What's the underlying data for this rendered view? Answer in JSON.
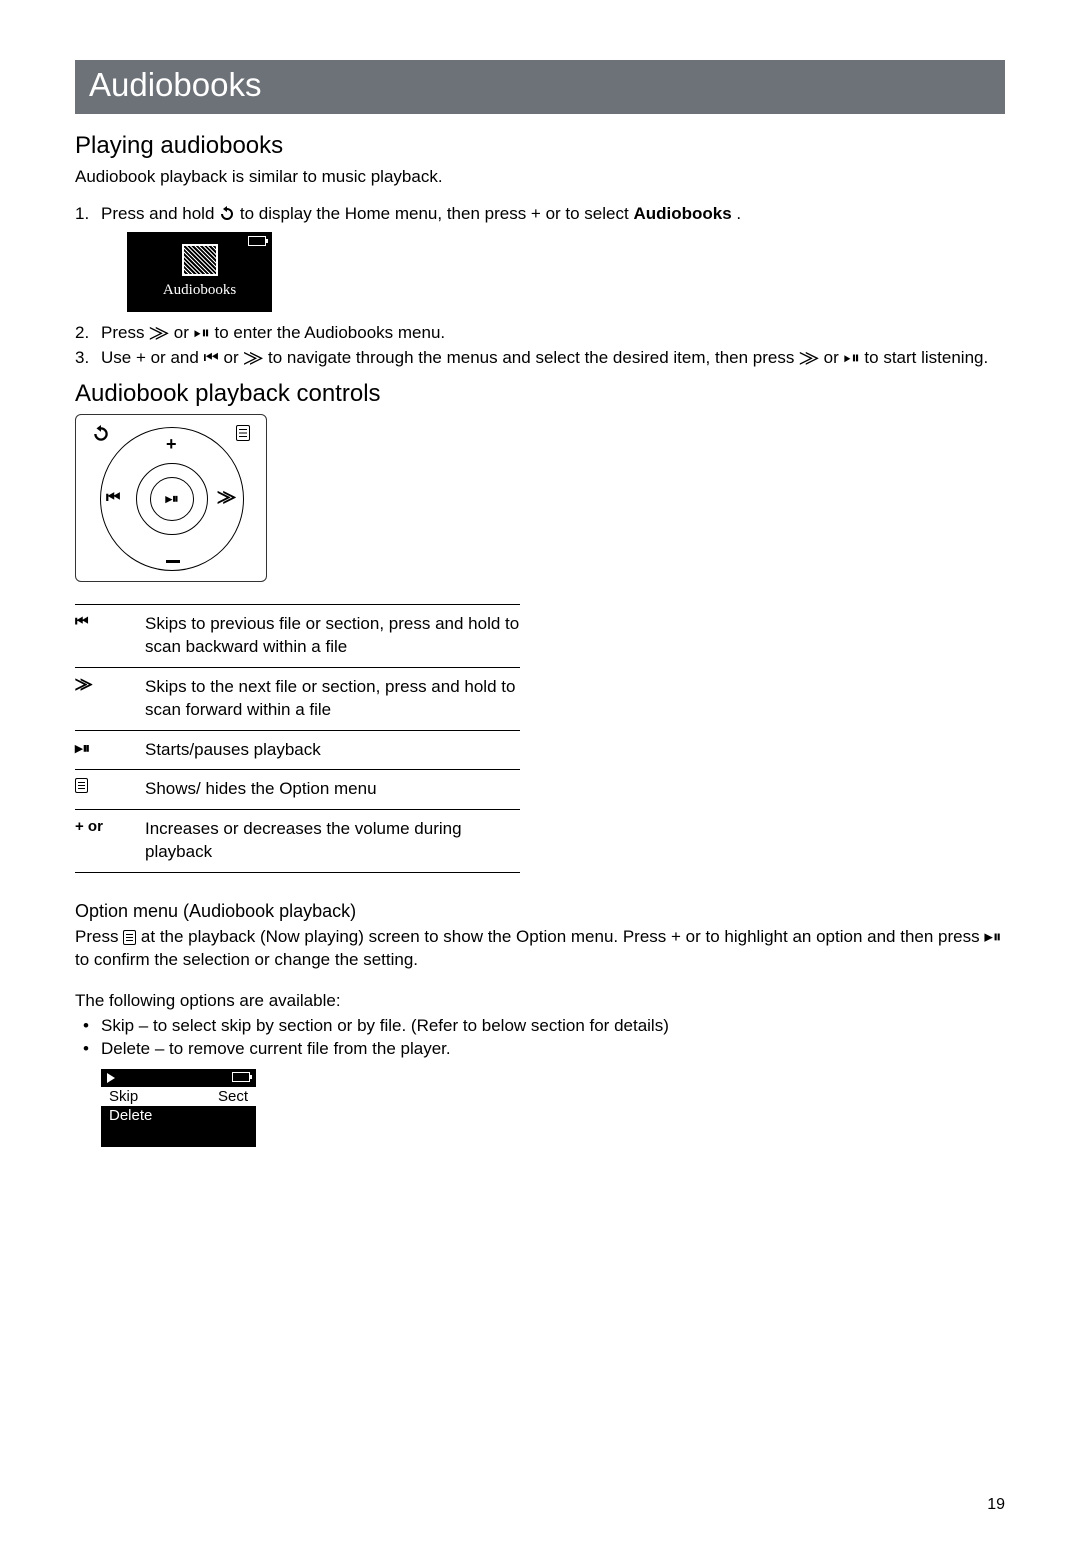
{
  "header": {
    "title": "Audiobooks"
  },
  "playing": {
    "title": "Playing audiobooks",
    "intro": "Audiobook playback is similar to music playback.",
    "step1_a": "Press and hold ",
    "step1_b": " to display the Home menu, then press + or    to select ",
    "step1_bold": "Audiobooks",
    "step1_c": " .",
    "mini_caption": "Audiobooks",
    "step2": "Press ⨠ or ▸⏸ to enter the Audiobooks menu.",
    "step3": "Use + or   and ⏮ or ⨠ to navigate through the menus and select the desired item, then press ⨠ or ▸⏸ to start listening."
  },
  "controls": {
    "title": "Audiobook playback controls",
    "diagram": {
      "back": "↺",
      "plus": "+",
      "prev": "⏮",
      "play": "▸⏸",
      "next": "⨠"
    },
    "rows": [
      {
        "sym_text": "⏮",
        "desc": "Skips to previous file or section, press and hold to scan backward within a file"
      },
      {
        "sym_text": "⨠",
        "desc": "Skips to the next file or section, press and hold to scan forward within a file"
      },
      {
        "sym_text": "▸⏸",
        "desc": "Starts/pauses playback"
      },
      {
        "sym_menu": true,
        "desc": "Shows/ hides the Option menu"
      },
      {
        "sym_text": "+ or",
        "desc": "Increases or decreases the volume during playback"
      }
    ]
  },
  "option_menu": {
    "title": "Option menu (Audiobook playback)",
    "para_a": "Press ",
    "para_b": " at the playback (Now playing) screen to show the Option menu. Press + or    to highlight an option and then press ▸⏸ to confirm the selection or change the setting.",
    "avail": "The following options are available:",
    "bullets": [
      "Skip – to select skip by section or by file. (Refer to below section for details)",
      "Delete – to remove current file from the player."
    ],
    "mini_rows": [
      {
        "l": "Skip",
        "r": "Sect",
        "sel": true
      },
      {
        "l": "Delete",
        "r": "",
        "sel": false
      }
    ]
  },
  "page_number": "19"
}
